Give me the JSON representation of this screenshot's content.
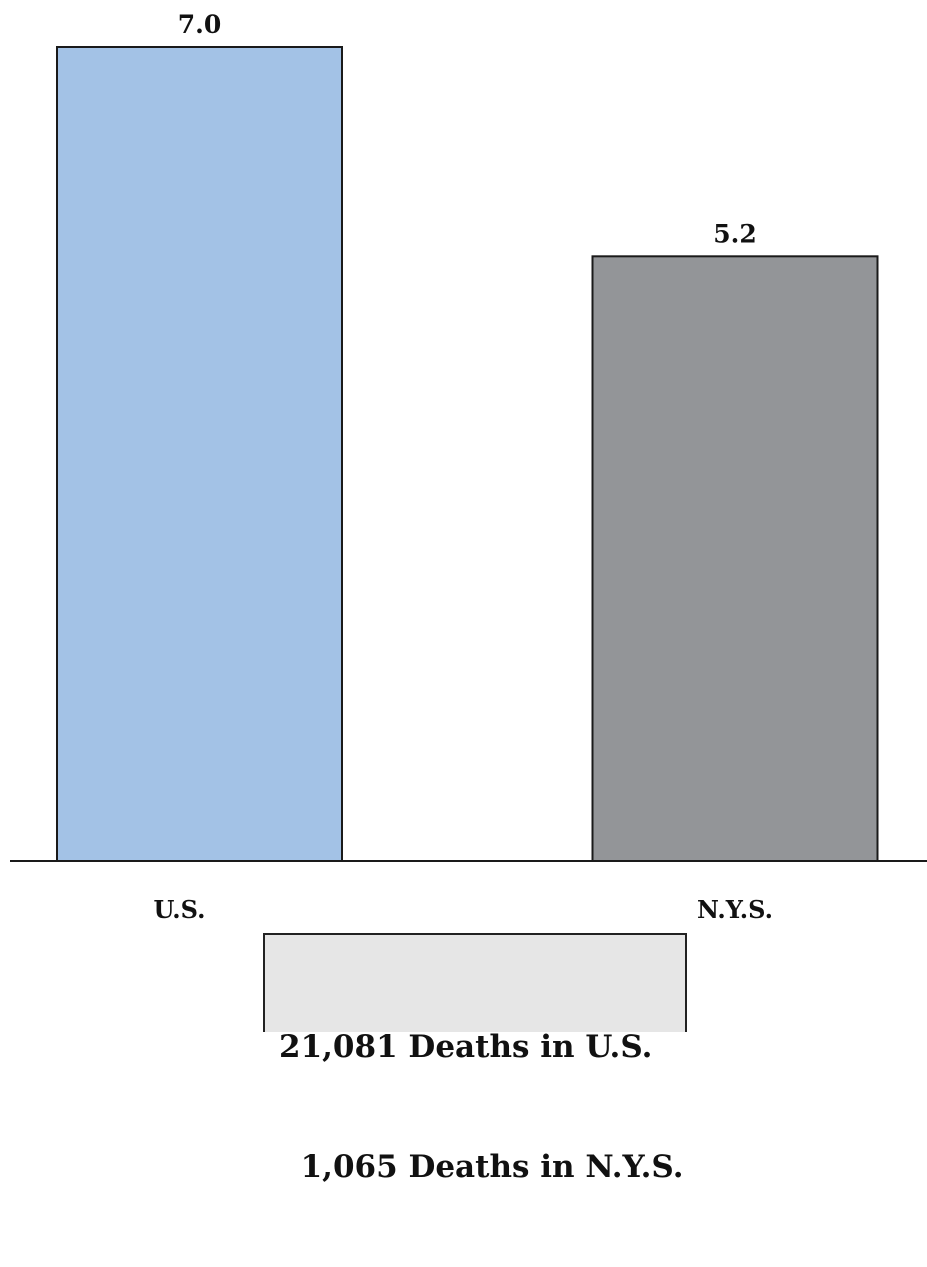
{
  "chart_data": {
    "type": "bar",
    "categories": [
      "U.S.",
      "N.Y.S."
    ],
    "values": [
      7.0,
      5.2
    ],
    "data_labels": [
      "7.0",
      "5.2"
    ],
    "colors": [
      "#a3c2e6",
      "#939598"
    ],
    "title": "",
    "xlabel": "",
    "ylabel": "",
    "ylim": [
      0,
      7.0
    ],
    "grid": false,
    "legend": "none"
  },
  "notes_box": {
    "lines": [
      "21,081 Deaths in U.S.",
      "  1,065 Deaths in N.Y.S."
    ]
  }
}
